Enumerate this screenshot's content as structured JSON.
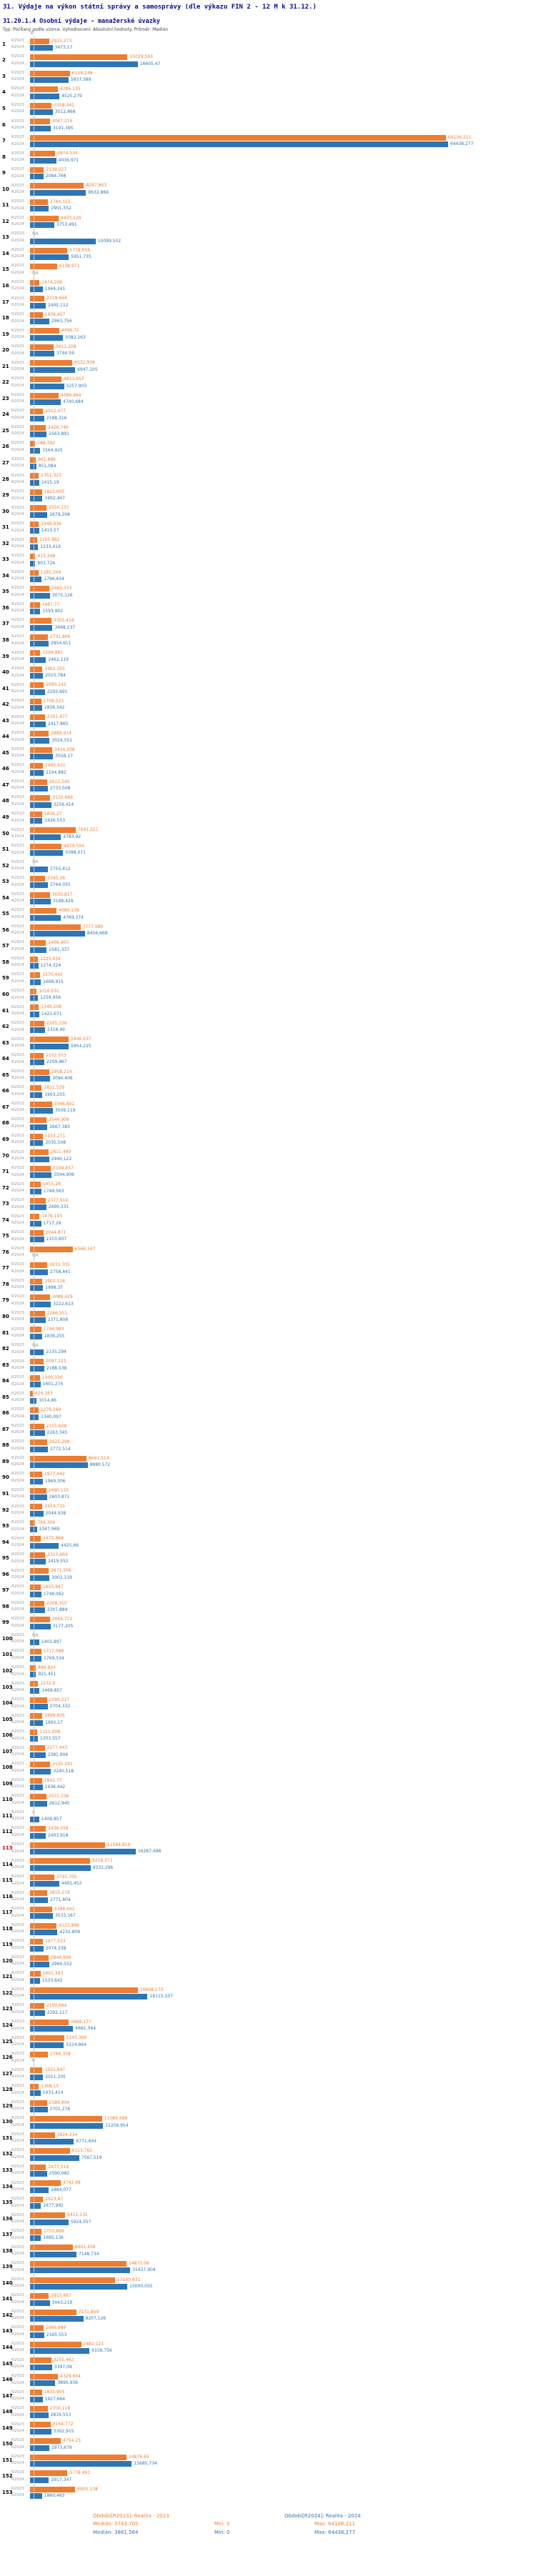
{
  "header": {
    "title": "31. Výdaje na výkon státní správy a samosprávy (dle výkazu FIN 2 - 12 M k 31.12.)",
    "subtitle": "31.20.1.4 Osobní výdaje - manažerské úvazky",
    "meta": "Typ: Počítaný podle vzorce. Vyhodnocení: Absolutní hodnoty. Průměr: Medián"
  },
  "axis": {
    "zero": "0"
  },
  "legend": {
    "r2023": {
      "title": "Období[R2023]: Realita - 2023",
      "median": "Medián: 3743,705",
      "min": "Min: 0",
      "max": "Max: 64106,211"
    },
    "r2024": {
      "title": "Období[R2024]: Realita - 2024",
      "median": "Medián: 3861,564",
      "min": "Min: 0",
      "max": "Max: 64438,277"
    }
  },
  "chart_data": {
    "type": "bar",
    "orientation": "horizontal",
    "title": "31.20.1.4 Osobní výdaje - manažerské úvazky",
    "xlabel": "",
    "ylabel": "",
    "xlim": [
      0,
      64438.277
    ],
    "grid": false,
    "legend_position": "bottom",
    "na_label": "NA",
    "series": [
      {
        "name": "R2023",
        "color": "#ED7D31"
      },
      {
        "name": "R2024",
        "color": "#2E75B6"
      }
    ],
    "rows": [
      {
        "category": "1",
        "r2023": "2925,273",
        "r2024": "3473,17"
      },
      {
        "category": "2",
        "r2023": "15029,593",
        "r2024": "16605,47"
      },
      {
        "category": "3",
        "r2023": "6138,248",
        "r2024": "5937,589"
      },
      {
        "category": "4",
        "r2023": "4286,135",
        "r2024": "4525,279"
      },
      {
        "category": "5",
        "r2023": "3358,442",
        "r2024": "3512,868"
      },
      {
        "category": "6",
        "r2023": "3047,216",
        "r2024": "3191,395"
      },
      {
        "category": "7",
        "r2023": "64106,211",
        "r2024": "64438,277"
      },
      {
        "category": "8",
        "r2023": "3874,534",
        "r2024": "4036,971"
      },
      {
        "category": "9",
        "r2023": "2139,227",
        "r2024": "2084,768"
      },
      {
        "category": "10",
        "r2023": "8297,863",
        "r2024": "8632,869"
      },
      {
        "category": "11",
        "r2023": "2744,315",
        "r2024": "2901,552"
      },
      {
        "category": "12",
        "r2023": "4403,529",
        "r2024": "3753,491"
      },
      {
        "category": "13",
        "r2023": "NA",
        "r2024": "10099,502"
      },
      {
        "category": "14",
        "r2023": "5778,059",
        "r2024": "5951,735"
      },
      {
        "category": "15",
        "r2023": "4138,971",
        "r2024": "NA"
      },
      {
        "category": "16",
        "r2023": "1474,209",
        "r2024": "1944,241"
      },
      {
        "category": "17",
        "r2023": "2218,664",
        "r2024": "2405,112"
      },
      {
        "category": "18",
        "r2023": "1939,457",
        "r2024": "2963,756"
      },
      {
        "category": "19",
        "r2023": "4496,72",
        "r2024": "5082,163"
      },
      {
        "category": "20",
        "r2023": "3611,208",
        "r2024": "3744,59"
      },
      {
        "category": "21",
        "r2023": "6532,936",
        "r2024": "6947,105"
      },
      {
        "category": "22",
        "r2023": "4833,953",
        "r2024": "5257,903"
      },
      {
        "category": "23",
        "r2023": "4389,964",
        "r2024": "4740,684"
      },
      {
        "category": "24",
        "r2023": "2012,477",
        "r2024": "2188,316"
      },
      {
        "category": "25",
        "r2023": "2426,746",
        "r2024": "2563,891"
      },
      {
        "category": "26",
        "r2023": "788,392",
        "r2024": "1564,925"
      },
      {
        "category": "27",
        "r2023": "901,886",
        "r2024": "951,084"
      },
      {
        "category": "28",
        "r2023": "1351,323",
        "r2024": "1415,19"
      },
      {
        "category": "29",
        "r2023": "1823,605",
        "r2024": "1902,447"
      },
      {
        "category": "30",
        "r2023": "2550,131",
        "r2024": "2679,208"
      },
      {
        "category": "31",
        "r2023": "1348,936",
        "r2024": "1410,57"
      },
      {
        "category": "32",
        "r2023": "1105,882",
        "r2024": "1233,419"
      },
      {
        "category": "33",
        "r2023": "813,348",
        "r2024": "803,724"
      },
      {
        "category": "34",
        "r2023": "1285,209",
        "r2024": "1796,634"
      },
      {
        "category": "35",
        "r2023": "2960,553",
        "r2024": "3075,126"
      },
      {
        "category": "36",
        "r2023": "1487,77",
        "r2024": "1593,902"
      },
      {
        "category": "37",
        "r2023": "3305,419",
        "r2024": "3468,237"
      },
      {
        "category": "38",
        "r2023": "2731,806",
        "r2024": "2854,611"
      },
      {
        "category": "39",
        "r2023": "1594,981",
        "r2024": "2462,119"
      },
      {
        "category": "40",
        "r2023": "1902,355",
        "r2024": "2015,784"
      },
      {
        "category": "41",
        "r2023": "2090,142",
        "r2024": "2293,691"
      },
      {
        "category": "42",
        "r2023": "1708,523",
        "r2024": "1856,342"
      },
      {
        "category": "43",
        "r2023": "2301,477",
        "r2024": "2417,865"
      },
      {
        "category": "44",
        "r2023": "2889,914",
        "r2024": "3024,551"
      },
      {
        "category": "45",
        "r2023": "3414,208",
        "r2024": "3556,17"
      },
      {
        "category": "46",
        "r2023": "1995,631",
        "r2024": "2104,882"
      },
      {
        "category": "47",
        "r2023": "2612,345",
        "r2024": "2733,508"
      },
      {
        "category": "48",
        "r2023": "3120,669",
        "r2024": "3259,414"
      },
      {
        "category": "49",
        "r2023": "1834,27",
        "r2024": "1926,553"
      },
      {
        "category": "50",
        "r2023": "7041,221",
        "r2024": "4783,92"
      },
      {
        "category": "51",
        "r2023": "4879,556",
        "r2024": "5098,071"
      },
      {
        "category": "52",
        "r2023": "NA",
        "r2024": "2755,412"
      },
      {
        "category": "53",
        "r2023": "2345,26",
        "r2024": "2764,055"
      },
      {
        "category": "54",
        "r2023": "3050,817",
        "r2024": "3188,429"
      },
      {
        "category": "55",
        "r2023": "4089,138",
        "r2024": "4769,374"
      },
      {
        "category": "56",
        "r2023": "7777,989",
        "r2024": "8456,668"
      },
      {
        "category": "57",
        "r2023": "2466,903",
        "r2024": "2581,337"
      },
      {
        "category": "58",
        "r2023": "1225,634",
        "r2024": "1274,324"
      },
      {
        "category": "59",
        "r2023": "1570,442",
        "r2024": "1668,915"
      },
      {
        "category": "60",
        "r2023": "1016,031",
        "r2024": "1259,956"
      },
      {
        "category": "61",
        "r2023": "1349,208",
        "r2024": "1422,671"
      },
      {
        "category": "62",
        "r2023": "2205,336",
        "r2024": "2318,49"
      },
      {
        "category": "63",
        "r2023": "5946,037",
        "r2024": "5954,225"
      },
      {
        "category": "64",
        "r2023": "2102,553",
        "r2024": "2209,867"
      },
      {
        "category": "65",
        "r2023": "2958,214",
        "r2024": "3094,406"
      },
      {
        "category": "66",
        "r2023": "1811,529",
        "r2024": "1903,255"
      },
      {
        "category": "67",
        "r2023": "3366,842",
        "r2024": "3509,119"
      },
      {
        "category": "68",
        "r2023": "2544,906",
        "r2024": "2667,383"
      },
      {
        "category": "69",
        "r2023": "1933,271",
        "r2024": "2035,508"
      },
      {
        "category": "70",
        "r2023": "2811,449",
        "r2024": "2940,122"
      },
      {
        "category": "71",
        "r2023": "3199,837",
        "r2024": "3344,906"
      },
      {
        "category": "72",
        "r2023": "1655,28",
        "r2024": "1749,563"
      },
      {
        "category": "73",
        "r2023": "2377,914",
        "r2024": "2490,331"
      },
      {
        "category": "74",
        "r2023": "1476,193",
        "r2024": "1717,29"
      },
      {
        "category": "75",
        "r2023": "2044,871",
        "r2024": "2153,607"
      },
      {
        "category": "76",
        "r2023": "6566,347",
        "r2024": "NA"
      },
      {
        "category": "77",
        "r2023": "2633,705",
        "r2024": "2758,441"
      },
      {
        "category": "78",
        "r2023": "1902,116",
        "r2024": "1998,37"
      },
      {
        "category": "79",
        "r2023": "3088,429",
        "r2024": "3222,613"
      },
      {
        "category": "80",
        "r2023": "2266,551",
        "r2024": "2371,808"
      },
      {
        "category": "81",
        "r2023": "1744,983",
        "r2024": "1839,255"
      },
      {
        "category": "82",
        "r2023": "NA",
        "r2024": "2135,294"
      },
      {
        "category": "83",
        "r2023": "2097,121",
        "r2024": "2188,538"
      },
      {
        "category": "84",
        "r2023": "1509,336",
        "r2024": "1601,274"
      },
      {
        "category": "85",
        "r2023": "426,163",
        "r2024": "1014,86"
      },
      {
        "category": "86",
        "r2023": "1279,169",
        "r2024": "1340,097"
      },
      {
        "category": "87",
        "r2023": "2155,608",
        "r2024": "2263,345"
      },
      {
        "category": "88",
        "r2023": "2625,298",
        "r2024": "2772,514"
      },
      {
        "category": "89",
        "r2023": "8691,514",
        "r2024": "8880,572"
      },
      {
        "category": "90",
        "r2023": "1877,442",
        "r2024": "1969,306"
      },
      {
        "category": "91",
        "r2023": "2490,155",
        "r2024": "2603,871"
      },
      {
        "category": "92",
        "r2023": "1914,715",
        "r2024": "2044,938"
      },
      {
        "category": "93",
        "r2023": "794,309",
        "r2024": "1047,969"
      },
      {
        "category": "94",
        "r2023": "1670,888",
        "r2024": "4425,66"
      },
      {
        "category": "95",
        "r2023": "2310,664",
        "r2024": "2419,552"
      },
      {
        "category": "96",
        "r2023": "2871,506",
        "r2024": "3002,319"
      },
      {
        "category": "97",
        "r2023": "1655,947",
        "r2024": "1748,062"
      },
      {
        "category": "98",
        "r2023": "2208,315",
        "r2024": "2307,884"
      },
      {
        "category": "99",
        "r2023": "3044,772",
        "r2024": "3177,205"
      },
      {
        "category": "100",
        "r2023": "NA",
        "r2024": "1403,897"
      },
      {
        "category": "101",
        "r2023": "1717,088",
        "r2024": "1769,534"
      },
      {
        "category": "102",
        "r2023": "884,824",
        "r2024": "921,451"
      },
      {
        "category": "103",
        "r2023": "1232,9",
        "r2024": "1469,857"
      },
      {
        "category": "104",
        "r2023": "2590,217",
        "r2024": "2704,332"
      },
      {
        "category": "105",
        "r2023": "1899,605",
        "r2024": "1993,17"
      },
      {
        "category": "106",
        "r2023": "1151,008",
        "r2024": "1203,557"
      },
      {
        "category": "107",
        "r2023": "2277,443",
        "r2024": "2381,906"
      },
      {
        "category": "108",
        "r2023": "3105,291",
        "r2024": "3240,518"
      },
      {
        "category": "109",
        "r2023": "1842,77",
        "r2024": "1936,442"
      },
      {
        "category": "110",
        "r2023": "2501,336",
        "r2024": "2612,945"
      },
      {
        "category": "111",
        "r2023": "0",
        "r2024": "1409,857"
      },
      {
        "category": "112",
        "r2023": "2436,058",
        "r2024": "2403,918"
      },
      {
        "category": "113",
        "r2023": "11564,816",
        "r2024": "16287,498",
        "highlight": true
      },
      {
        "category": "114",
        "r2023": "9256,071",
        "r2024": "9331,296"
      },
      {
        "category": "115",
        "r2023": "3743,705",
        "r2024": "4491,452"
      },
      {
        "category": "116",
        "r2023": "2655,219",
        "r2024": "2771,604"
      },
      {
        "category": "117",
        "r2023": "3388,442",
        "r2024": "3533,167"
      },
      {
        "category": "118",
        "r2023": "4125,896",
        "r2024": "4232,809"
      },
      {
        "category": "119",
        "r2023": "1977,553",
        "r2024": "2074,338"
      },
      {
        "category": "120",
        "r2023": "2844,906",
        "r2024": "2969,552"
      },
      {
        "category": "121",
        "r2023": "1601,393",
        "r2024": "1533,642"
      },
      {
        "category": "122",
        "r2023": "16608,173",
        "r2024": "18115,107"
      },
      {
        "category": "123",
        "r2023": "2190,664",
        "r2024": "2292,117"
      },
      {
        "category": "124",
        "r2023": "5969,177",
        "r2024": "6661,564"
      },
      {
        "category": "125",
        "r2023": "5243,366",
        "r2024": "5224,864"
      },
      {
        "category": "126",
        "r2023": "2766,358",
        "r2024": "0"
      },
      {
        "category": "127",
        "r2023": "1922,847",
        "r2024": "2011,335"
      },
      {
        "category": "128",
        "r2023": "1368,15",
        "r2024": "1631,414"
      },
      {
        "category": "129",
        "r2023": "2588,904",
        "r2024": "2701,276"
      },
      {
        "category": "130",
        "r2023": "11089,498",
        "r2024": "11256,954"
      },
      {
        "category": "131",
        "r2023": "3824,234",
        "r2024": "6771,604"
      },
      {
        "category": "132",
        "r2023": "6113,762",
        "r2024": "7567,519"
      },
      {
        "category": "133",
        "r2023": "2477,519",
        "r2024": "2590,082"
      },
      {
        "category": "134",
        "r2023": "4742,48",
        "r2024": "2884,077"
      },
      {
        "category": "135",
        "r2023": "2023,87",
        "r2024": "1677,992"
      },
      {
        "category": "136",
        "r2023": "5411,131",
        "r2024": "5924,057"
      },
      {
        "category": "137",
        "r2023": "1755,899",
        "r2024": "1695,136"
      },
      {
        "category": "138",
        "r2023": "6601,458",
        "r2024": "7148,734"
      },
      {
        "category": "139",
        "r2023": "14870,06",
        "r2024": "15437,904"
      },
      {
        "category": "140",
        "r2023": "13100,931",
        "r2024": "15000,055"
      },
      {
        "category": "141",
        "r2023": "2915,667",
        "r2024": "3043,219"
      },
      {
        "category": "142",
        "r2023": "7131,859",
        "r2024": "8207,126"
      },
      {
        "category": "143",
        "r2023": "2066,984",
        "r2024": "2165,553"
      },
      {
        "category": "144",
        "r2023": "7881,121",
        "r2024": "9156,756"
      },
      {
        "category": "145",
        "r2023": "3255,442",
        "r2024": "3397,08"
      },
      {
        "category": "146",
        "r2023": "4329,604",
        "r2024": "3890,936"
      },
      {
        "category": "147",
        "r2023": "1833,905",
        "r2024": "1927,664"
      },
      {
        "category": "148",
        "r2023": "2700,118",
        "r2024": "2819,553"
      },
      {
        "category": "149",
        "r2023": "3164,772",
        "r2024": "3302,915"
      },
      {
        "category": "150",
        "r2023": "4754,23",
        "r2024": "2973,679"
      },
      {
        "category": "151",
        "r2023": "14876,65",
        "r2024": "15685,734"
      },
      {
        "category": "152",
        "r2023": "5778,491",
        "r2024": "2917,347"
      },
      {
        "category": "153",
        "r2023": "6955,138",
        "r2024": "1860,483"
      }
    ]
  }
}
